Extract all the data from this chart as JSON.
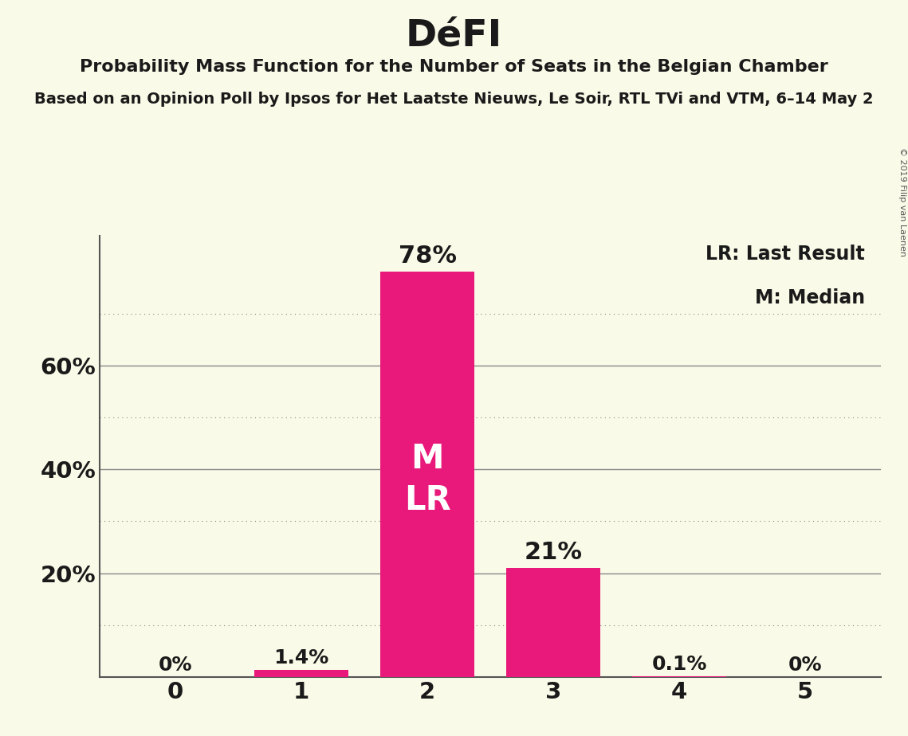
{
  "title": "DéFI",
  "subtitle1": "Probability Mass Function for the Number of Seats in the Belgian Chamber",
  "subtitle2": "Based on an Opinion Poll by Ipsos for Het Laatste Nieuws, Le Soir, RTL TVi and VTM, 6–14 May 2",
  "copyright": "© 2019 Filip van Laenen",
  "categories": [
    0,
    1,
    2,
    3,
    4,
    5
  ],
  "values": [
    0.0,
    1.4,
    78.0,
    21.0,
    0.1,
    0.0
  ],
  "labels": [
    "0%",
    "1.4%",
    "78%",
    "21%",
    "0.1%",
    "0%"
  ],
  "bar_color": "#E8197A",
  "background_color": "#FAFAE8",
  "median_bar": 2,
  "last_result_bar": 2,
  "median_label": "M",
  "lr_label": "LR",
  "legend_lr": "LR: Last Result",
  "legend_m": "M: Median",
  "ylim": [
    0,
    85
  ],
  "solid_yticks": [
    20,
    40,
    60
  ],
  "dotted_yticks": [
    10,
    30,
    50,
    70
  ],
  "ytick_show": [
    20,
    40,
    60
  ],
  "ytick_labels_map": {
    "20": "20%",
    "40": "40%",
    "60": "60%"
  }
}
